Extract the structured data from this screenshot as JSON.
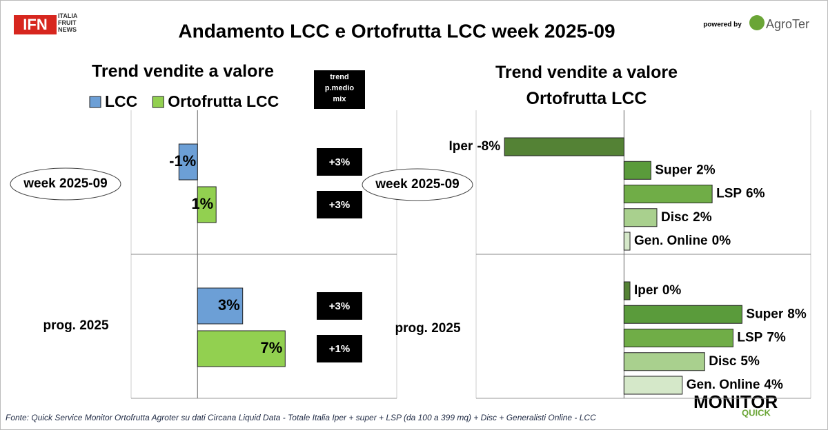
{
  "header": {
    "logo": "IFN",
    "logo_sub": "ITALIA FRUIT NEWS",
    "powered_by": "powered by",
    "brand": "AgroTer"
  },
  "footer": {
    "source": "Fonte: Quick Service Monitor Ortofrutta Agroter su dati Circana Liquid Data - Totale Italia Iper + super + LSP (da 100 a 399 mq) + Disc + Generalisti Online - LCC",
    "monitor": "MONITOR",
    "quick": "QUICK"
  },
  "title": "Andamento LCC e Ortofrutta LCC week 2025-09",
  "chart_data": [
    {
      "type": "bar",
      "title": "Trend vendite a valore",
      "categories": [
        "week 2025-09",
        "prog. 2025"
      ],
      "xlim": [
        -5,
        15
      ],
      "legend": "top",
      "data_labels": "value",
      "series": [
        {
          "name": "LCC",
          "color": "#6c9fd6",
          "values": [
            -1.4,
            3.4
          ],
          "value_labels": [
            "-1%",
            "3%"
          ]
        },
        {
          "name": "Ortofrutta LCC",
          "color": "#92d050",
          "values": [
            1.4,
            6.6
          ],
          "value_labels": [
            "1%",
            "7%"
          ]
        }
      ],
      "trend": {
        "title": "trend p.medio mix",
        "series": [
          {
            "values": [
              3,
              3
            ],
            "value_labels": [
              "+3%",
              "+3%"
            ]
          },
          {
            "values": [
              3,
              1
            ],
            "value_labels": [
              "+3%",
              "+1%"
            ]
          }
        ]
      }
    },
    {
      "type": "bar",
      "title": "Trend vendite a valore Ortofrutta LCC",
      "categories": [
        "week 2025-09",
        "prog. 2025"
      ],
      "xlim": [
        -9.9,
        12.5
      ],
      "data_labels": "name-value",
      "series": [
        {
          "name": "Iper",
          "color": "#548235",
          "values": [
            -8.0,
            0.4
          ],
          "value_labels": [
            "-8%",
            "0%"
          ]
        },
        {
          "name": "Super",
          "color": "#5a9b3b",
          "values": [
            1.8,
            7.9
          ],
          "value_labels": [
            "2%",
            "8%"
          ]
        },
        {
          "name": "LSP",
          "color": "#70ad47",
          "values": [
            5.9,
            7.3
          ],
          "value_labels": [
            "6%",
            "7%"
          ]
        },
        {
          "name": "Disc",
          "color": "#a9d08e",
          "values": [
            2.2,
            5.4
          ],
          "value_labels": [
            "2%",
            "5%"
          ]
        },
        {
          "name": "Gen. Online",
          "color": "#d5e8c9",
          "values": [
            0.4,
            3.9
          ],
          "value_labels": [
            "0%",
            "4%"
          ]
        }
      ]
    }
  ]
}
